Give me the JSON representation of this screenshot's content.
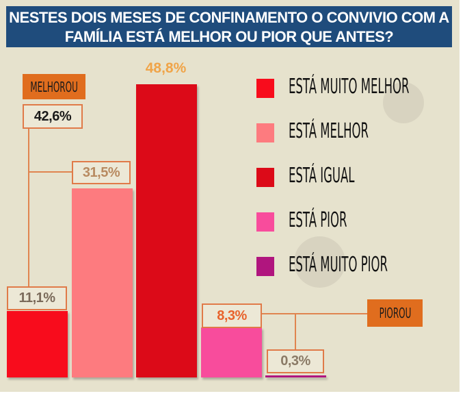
{
  "chart_data": {
    "type": "bar",
    "title": "NESTES DOIS MESES DE CONFINAMENTO O CONVIVIO COM A FAMÍLIA ESTÁ MELHOR OU PIOR QUE ANTES?",
    "categories": [
      "Está muito melhor",
      "Está melhor",
      "Está igual",
      "Está pior",
      "Está muito pior"
    ],
    "values": [
      11.1,
      31.5,
      48.8,
      8.3,
      0.3
    ],
    "labels": [
      "11,1%",
      "31,5%",
      "48,8%",
      "8,3%",
      "0,3%"
    ],
    "colors": [
      "#f80c1c",
      "#fd7b7f",
      "#dc0a18",
      "#f84c9c",
      "#b0157e"
    ],
    "legend": [
      "Está muito melhor",
      "Está melhor",
      "Está igual",
      "Está pior",
      "Está muito pior"
    ],
    "legend_placement": "right",
    "groups": [
      {
        "label": "MELHOROU",
        "total": "42,6%"
      },
      {
        "label": "PIOROU"
      }
    ],
    "ylim": [
      0,
      50
    ],
    "grid": false
  }
}
